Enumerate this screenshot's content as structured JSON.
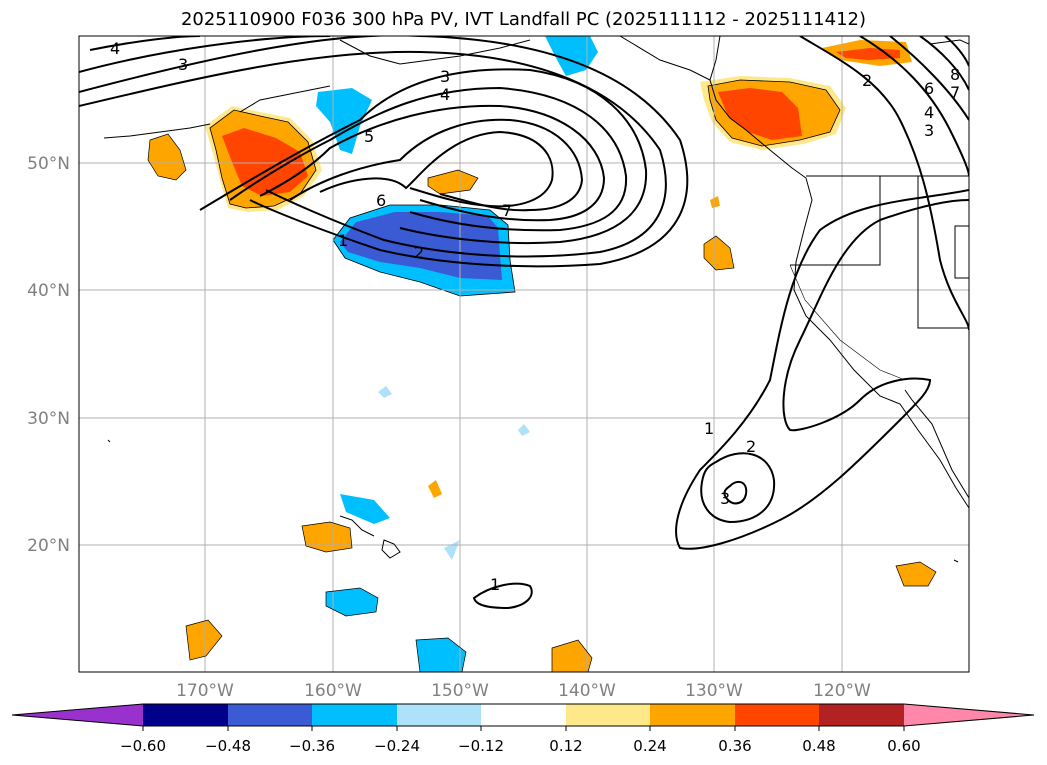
{
  "title": "2025110900 F036 300 hPa PV, IVT Landfall PC (2025111112 - 2025111412)",
  "lat_labels": [
    "50°N",
    "40°N",
    "30°N",
    "20°N"
  ],
  "lon_labels": [
    "170°W",
    "160°W",
    "150°W",
    "140°W",
    "130°W",
    "120°W"
  ],
  "pv_contour_labels": [
    "4",
    "3",
    "3",
    "4",
    "5",
    "6",
    "7",
    "1",
    "2",
    "2",
    "6",
    "4",
    "3",
    "8",
    "7",
    "1",
    "2",
    "3",
    "1"
  ],
  "colorbar": {
    "colors": [
      "#9932cc",
      "#00008b",
      "#3a5bd3",
      "#00bfff",
      "#aee2fa",
      "#ffffff",
      "#ffe88a",
      "#ffa500",
      "#ff4500",
      "#b22222",
      "#ff88aa"
    ],
    "tick_labels": [
      "−0.60",
      "−0.48",
      "−0.36",
      "−0.24",
      "−0.12",
      "0.12",
      "0.24",
      "0.36",
      "0.48",
      "0.60"
    ]
  }
}
